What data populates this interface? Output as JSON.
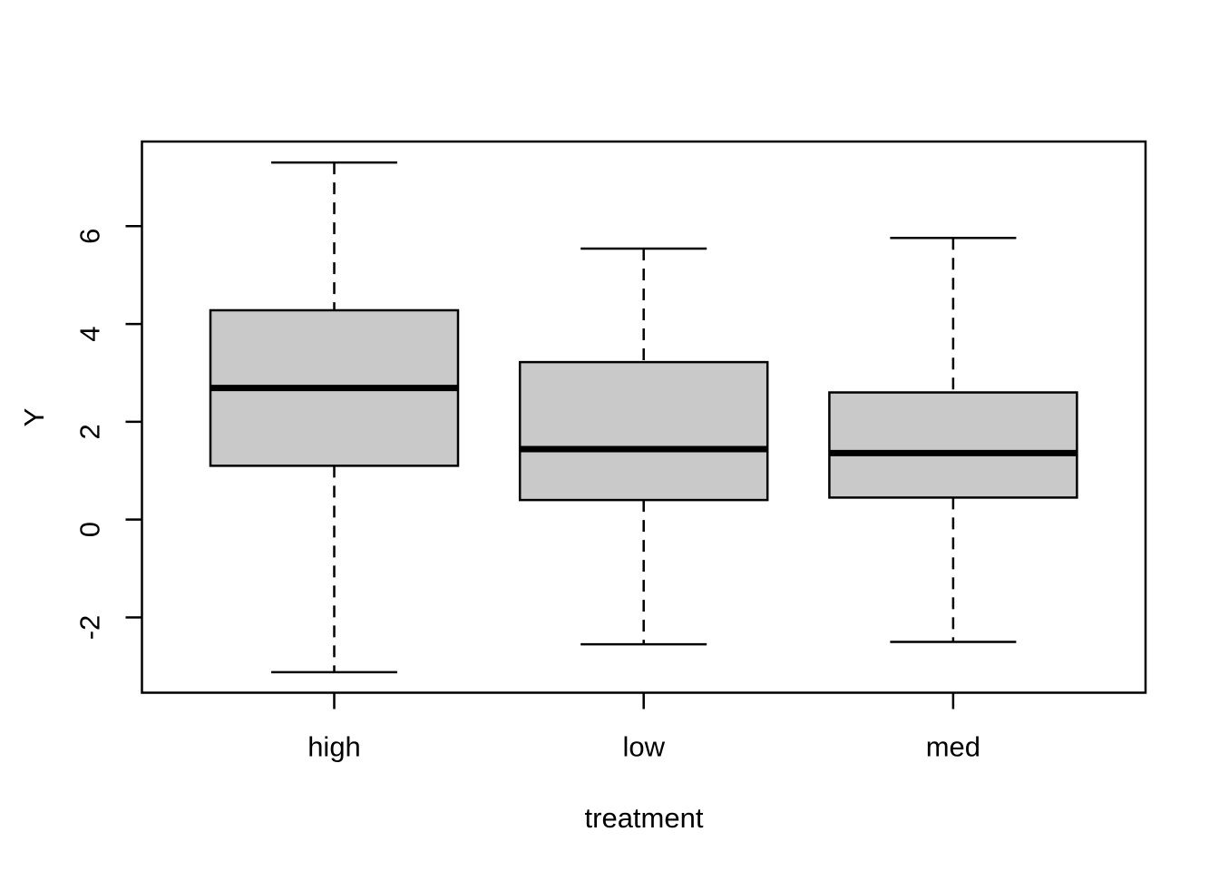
{
  "chart_data": {
    "type": "boxplot",
    "title": "",
    "xlabel": "treatment",
    "ylabel": "Y",
    "categories": [
      "high",
      "low",
      "med"
    ],
    "y_ticks": [
      -2,
      0,
      2,
      4,
      6
    ],
    "ylim": [
      -3.54,
      7.73
    ],
    "grid": "off",
    "legend": "none",
    "box_fill_color": "#C9C9C9",
    "line_color": "#000000",
    "whisker_style": "dashed",
    "series": [
      {
        "name": "high",
        "lower_whisker": -3.12,
        "q1": 1.1,
        "median": 2.69,
        "q3": 4.28,
        "upper_whisker": 7.3
      },
      {
        "name": "low",
        "lower_whisker": -2.55,
        "q1": 0.4,
        "median": 1.44,
        "q3": 3.22,
        "upper_whisker": 5.54
      },
      {
        "name": "med",
        "lower_whisker": -2.5,
        "q1": 0.45,
        "median": 1.36,
        "q3": 2.6,
        "upper_whisker": 5.76
      }
    ]
  }
}
